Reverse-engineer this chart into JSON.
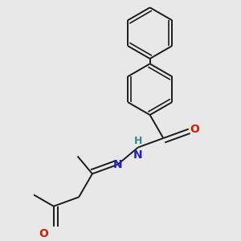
{
  "background_color": "#e8e8e8",
  "line_color": "#1a1a1a",
  "bond_width": 1.4,
  "atom_colors": {
    "N": "#2222bb",
    "O": "#cc2200",
    "H": "#3a8a8a",
    "C": "#1a1a1a"
  },
  "font_size": 10,
  "figsize": [
    3.0,
    3.0
  ],
  "dpi": 100
}
